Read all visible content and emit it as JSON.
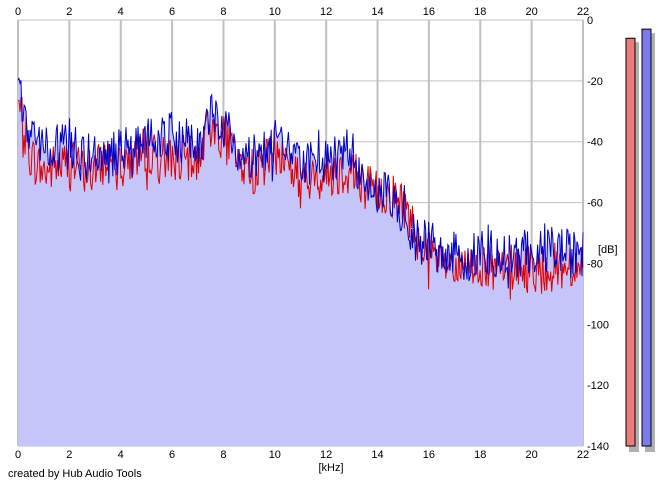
{
  "credit": "created by Hub Audio Tools",
  "colors": {
    "background": "#ffffff",
    "plot_background": "#ffffff",
    "fill": "#c5c5f9",
    "left_channel": "#e00000",
    "right_channel": "#0000cc",
    "grid": "#c0c0c0",
    "left_meter": "#ee7b7b",
    "right_meter": "#7b7bee"
  },
  "chart_data": {
    "type": "line",
    "xlabel": "[kHz]",
    "ylabel": "[dB]",
    "xlim": [
      0,
      22
    ],
    "ylim": [
      -140,
      0
    ],
    "x_ticks": [
      0,
      2,
      4,
      6,
      8,
      10,
      12,
      14,
      16,
      18,
      20,
      22
    ],
    "y_ticks": [
      0,
      -20,
      -40,
      -60,
      -80,
      -100,
      -120,
      -140
    ],
    "grid": true,
    "x": [
      0,
      0.5,
      1,
      1.5,
      2,
      2.5,
      3,
      3.5,
      4,
      4.5,
      5,
      5.5,
      6,
      6.5,
      7,
      7.5,
      8,
      8.5,
      9,
      9.5,
      10,
      10.5,
      11,
      11.5,
      12,
      12.5,
      13,
      13.5,
      14,
      14.5,
      15,
      15.5,
      16,
      16.5,
      17,
      17.5,
      18,
      18.5,
      19,
      19.5,
      20,
      20.5,
      21,
      21.5,
      22
    ],
    "series": [
      {
        "color": "red",
        "values": [
          -28,
          -45,
          -50,
          -48,
          -47,
          -49,
          -50,
          -45,
          -45,
          -46,
          -42,
          -46,
          -44,
          -47,
          -45,
          -35,
          -38,
          -45,
          -50,
          -48,
          -43,
          -46,
          -54,
          -53,
          -50,
          -50,
          -49,
          -54,
          -57,
          -57,
          -60,
          -70,
          -77,
          -80,
          -82,
          -82,
          -80,
          -83,
          -82,
          -81,
          -82,
          -82,
          -81,
          -81,
          -80
        ]
      },
      {
        "color": "blue",
        "values": [
          -24,
          -38,
          -43,
          -42,
          -40,
          -46,
          -43,
          -47,
          -42,
          -43,
          -39,
          -40,
          -38,
          -40,
          -43,
          -30,
          -34,
          -44,
          -46,
          -43,
          -40,
          -42,
          -49,
          -45,
          -46,
          -45,
          -43,
          -54,
          -57,
          -56,
          -63,
          -73,
          -74,
          -76,
          -76,
          -78,
          -77,
          -76,
          -78,
          -77,
          -77,
          -76,
          -75,
          -77,
          -77
        ]
      }
    ]
  },
  "level_meters": {
    "min": -140,
    "max": 0,
    "left": -6,
    "right": -3
  }
}
